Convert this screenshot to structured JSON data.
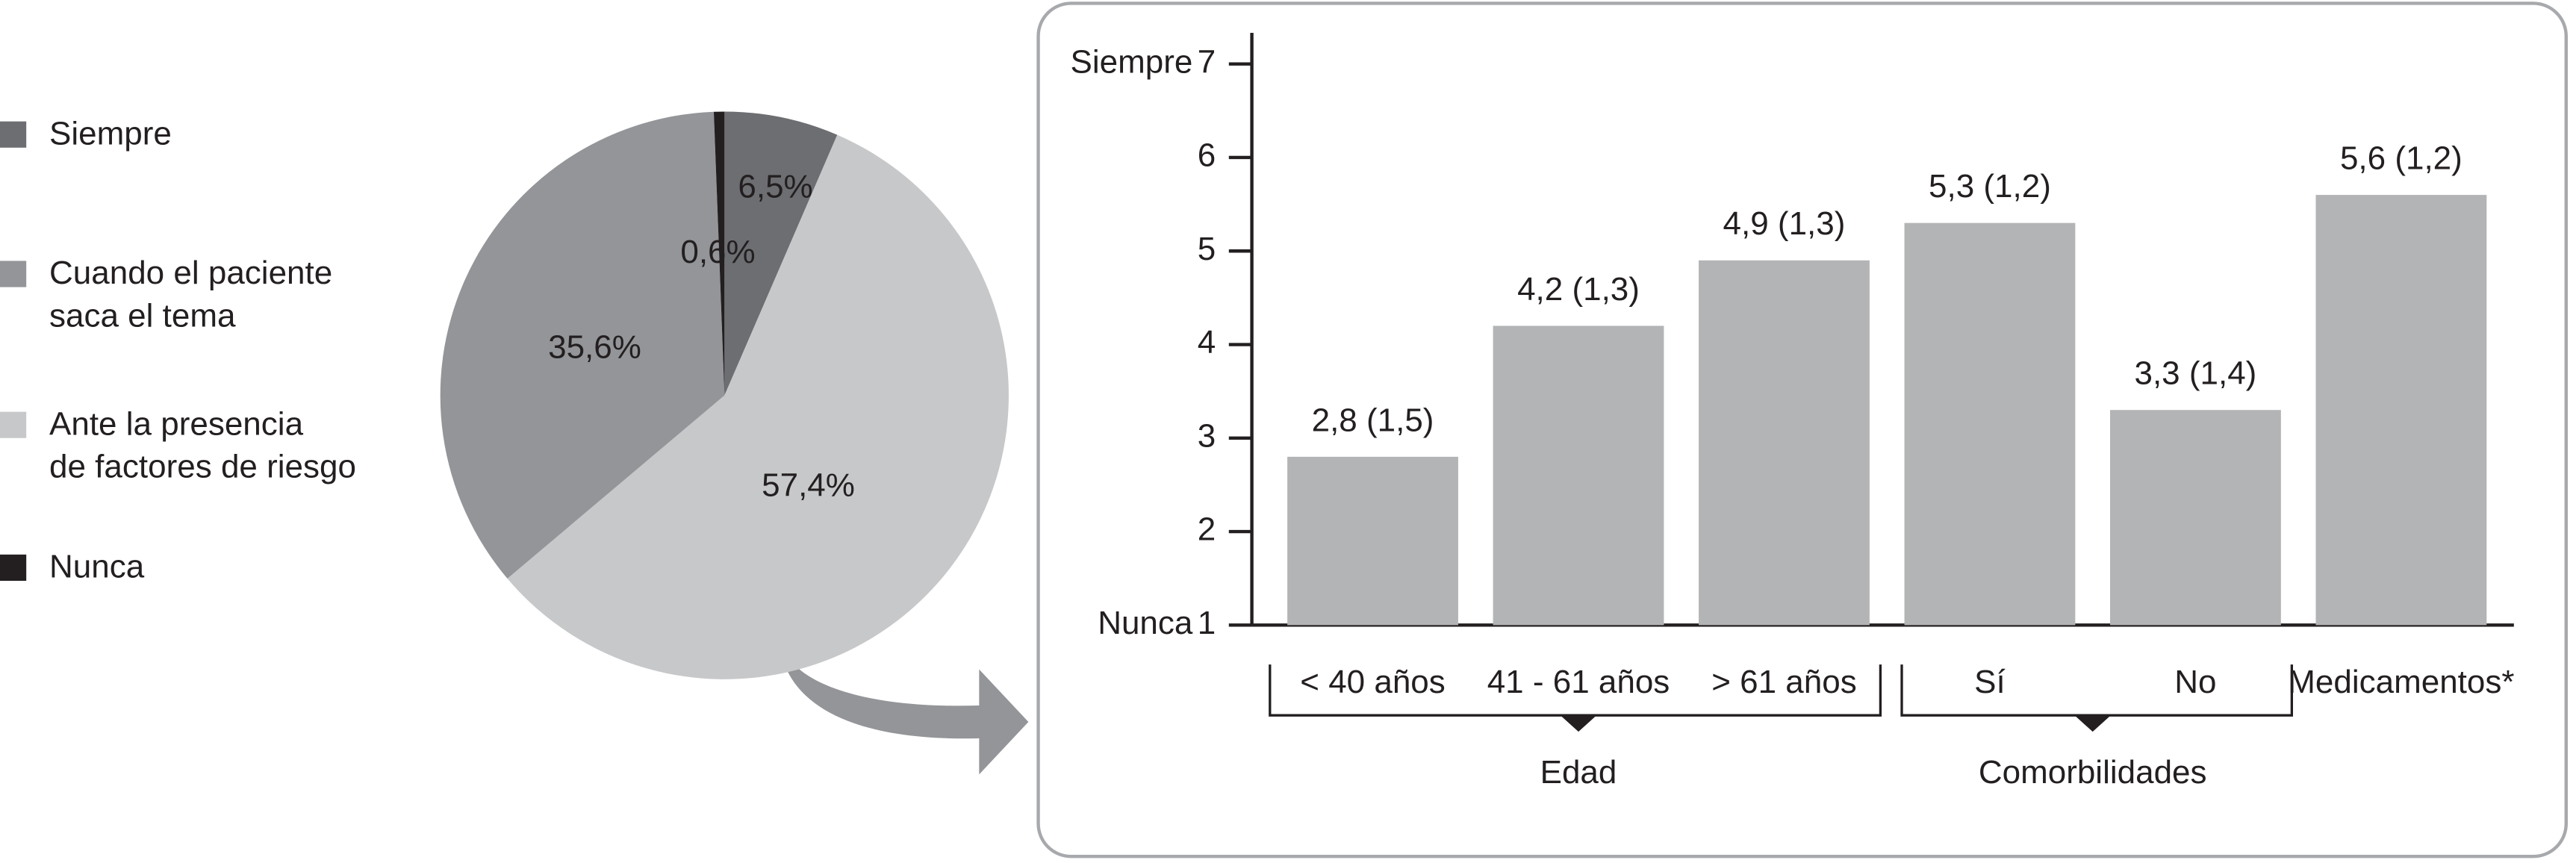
{
  "chart_data": [
    {
      "type": "pie",
      "series": [
        {
          "name": "Siempre",
          "color": "#6d6e71",
          "value": 6.5,
          "value_label": "6,5%"
        },
        {
          "name": "Cuando el paciente\nsaca el tema",
          "color": "#939598",
          "value": 35.6,
          "value_label": "35,6%"
        },
        {
          "name": "Ante la presencia\nde factores de riesgo",
          "color": "#c7c8ca",
          "value": 57.4,
          "value_label": "57,4%"
        },
        {
          "name": "Nunca",
          "color": "#231f20",
          "value": 0.6,
          "value_label": "0,6%"
        }
      ]
    },
    {
      "type": "bar",
      "categories": [
        "< 40 años",
        "41 - 61 años",
        "> 61 años",
        "Sí",
        "No",
        "Medicamentos*"
      ],
      "values": [
        2.8,
        4.2,
        4.9,
        5.3,
        3.3,
        5.6
      ],
      "value_labels": [
        "2,8 (1,5)",
        "4,2 (1,3)",
        "4,9 (1,3)",
        "5,3 (1,2)",
        "3,3 (1,4)",
        "5,6 (1,2)"
      ],
      "color": "#b3b4b6",
      "ylim": [
        1,
        7
      ],
      "yticks": [
        1,
        2,
        3,
        4,
        5,
        6,
        7
      ],
      "ylabel_top": "Siempre",
      "ylabel_bottom": "Nunca",
      "groups": [
        {
          "name": "Edad",
          "members": [
            "< 40 años",
            "41 - 61 años",
            "> 61 años"
          ]
        },
        {
          "name": "Comorbilidades",
          "members": [
            "Sí",
            "No"
          ]
        }
      ]
    }
  ]
}
